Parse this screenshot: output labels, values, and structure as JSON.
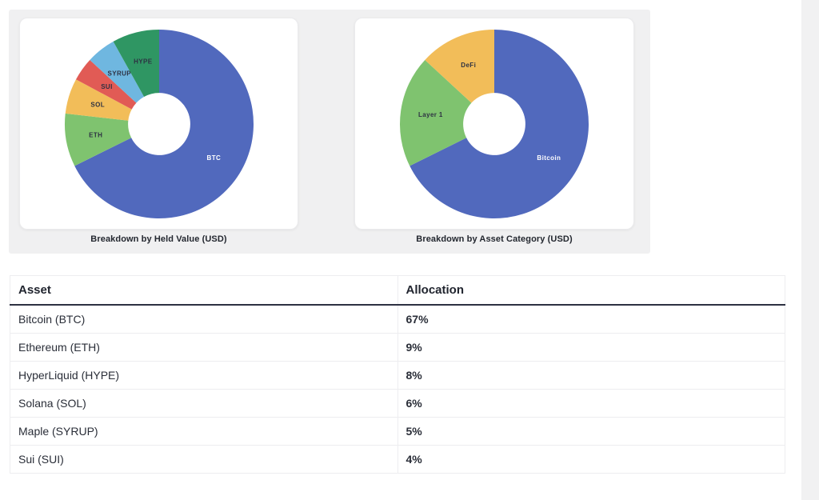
{
  "page": {
    "background": "#ffffff",
    "panel_background": "#f0f0f1",
    "right_strip_color": "#f1f1f2",
    "header_border_color": "#2d3142"
  },
  "chart_data": [
    {
      "type": "pie",
      "variant": "donut",
      "title": "Breakdown by Held Value (USD)",
      "labels": [
        "BTC",
        "ETH",
        "SOL",
        "SUI",
        "SYRUP",
        "HYPE"
      ],
      "values": [
        67,
        9,
        6,
        4,
        5,
        8
      ],
      "unit": "percent",
      "colors": [
        "#5169bd",
        "#7fc36f",
        "#f2bd59",
        "#e15b55",
        "#6fb7e0",
        "#2f9663"
      ],
      "label_colors": [
        "#ffffff",
        "#2d3142",
        "#2d3142",
        "#2d3142",
        "#2d3142",
        "#2d3142"
      ],
      "start_angle_deg": 0,
      "direction": "clockwise",
      "inner_radius_ratio": 0.33,
      "legend": "none"
    },
    {
      "type": "pie",
      "variant": "donut",
      "title": "Breakdown by Asset Category (USD)",
      "labels": [
        "Bitcoin",
        "Layer 1",
        "DeFi"
      ],
      "values": [
        67,
        19,
        13
      ],
      "unit": "percent",
      "colors": [
        "#5169bd",
        "#7fc36f",
        "#f2bd59"
      ],
      "label_colors": [
        "#ffffff",
        "#2d3142",
        "#2d3142"
      ],
      "start_angle_deg": 0,
      "direction": "clockwise",
      "inner_radius_ratio": 0.33,
      "legend": "none"
    }
  ],
  "table": {
    "columns": [
      "Asset",
      "Allocation"
    ],
    "rows": [
      {
        "asset": "Bitcoin (BTC)",
        "allocation": "67%"
      },
      {
        "asset": "Ethereum (ETH)",
        "allocation": "9%"
      },
      {
        "asset": "HyperLiquid (HYPE)",
        "allocation": "8%"
      },
      {
        "asset": "Solana (SOL)",
        "allocation": "6%"
      },
      {
        "asset": "Maple (SYRUP)",
        "allocation": "5%"
      },
      {
        "asset": "Sui (SUI)",
        "allocation": "4%"
      }
    ]
  }
}
